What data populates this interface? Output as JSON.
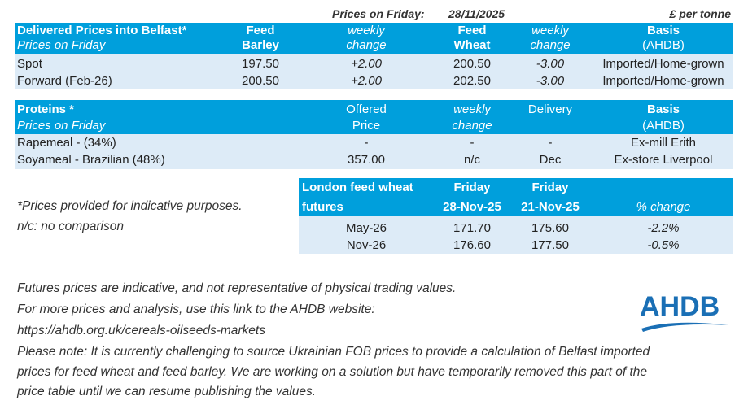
{
  "top": {
    "prices_on_friday_label": "Prices on Friday:",
    "date": "28/11/2025",
    "unit": "£ per tonne"
  },
  "delivered": {
    "title": "Delivered Prices into Belfast*",
    "subtitle": "Prices on Friday",
    "col_feed_barley_1": "Feed",
    "col_feed_barley_2": "Barley",
    "col_weekly_1": "weekly",
    "col_weekly_2": "change",
    "col_feed_wheat_1": "Feed",
    "col_feed_wheat_2": "Wheat",
    "col_weekly2_1": "weekly",
    "col_weekly2_2": "change",
    "col_basis_1": "Basis",
    "col_basis_2": "(AHDB)",
    "rows": [
      {
        "label": "Spot",
        "barley": "197.50",
        "barley_change": "+2.00",
        "wheat": "200.50",
        "wheat_change": "-3.00",
        "basis": "Imported/Home-grown"
      },
      {
        "label": "Forward (Feb-26)",
        "barley": "200.50",
        "barley_change": "+2.00",
        "wheat": "202.50",
        "wheat_change": "-3.00",
        "basis": "Imported/Home-grown"
      }
    ]
  },
  "proteins": {
    "title": "Proteins *",
    "subtitle": "Prices on Friday",
    "col_offered_1": "Offered",
    "col_offered_2": "Price",
    "col_weekly_1": "weekly",
    "col_weekly_2": "change",
    "col_delivery": "Delivery",
    "col_basis_1": "Basis",
    "col_basis_2": "(AHDB)",
    "rows": [
      {
        "label": "Rapemeal - (34%)",
        "price": "-",
        "change": "-",
        "delivery": "-",
        "basis": "Ex-mill Erith"
      },
      {
        "label": "Soyameal - Brazilian (48%)",
        "price": "357.00",
        "change": "n/c",
        "delivery": "Dec",
        "basis": "Ex-store Liverpool"
      }
    ]
  },
  "futures": {
    "title_1": "London feed wheat",
    "title_2": "futures",
    "col_a_1": "Friday",
    "col_a_2": "28-Nov-25",
    "col_b_1": "Friday",
    "col_b_2": "21-Nov-25",
    "col_change": "% change",
    "rows": [
      {
        "month": "May-26",
        "a": "171.70",
        "b": "175.60",
        "change": "-2.2%"
      },
      {
        "month": "Nov-26",
        "a": "176.60",
        "b": "177.50",
        "change": "-0.5%"
      }
    ]
  },
  "notes": {
    "indicative": "*Prices provided for indicative purposes.",
    "nc": "n/c: no comparison",
    "futures_note": "Futures prices are indicative, and not representative of physical trading values.",
    "more_prices": "For more prices and analysis, use this link to the AHDB website:",
    "link": "https://ahdb.org.uk/cereals-oilseeds-markets",
    "please_1": "Please note: It is currently challenging to source Ukrainian FOB prices to provide a calculation of Belfast imported",
    "please_2": "prices for feed wheat and feed barley. We are working on a solution but have temporarily removed this part of the",
    "please_3": "price table until we can resume publishing the values."
  },
  "logo": {
    "text": "AHDB",
    "color": "#1a6fb5"
  },
  "colors": {
    "header": "#009fdc",
    "band": "#ddebf7"
  }
}
